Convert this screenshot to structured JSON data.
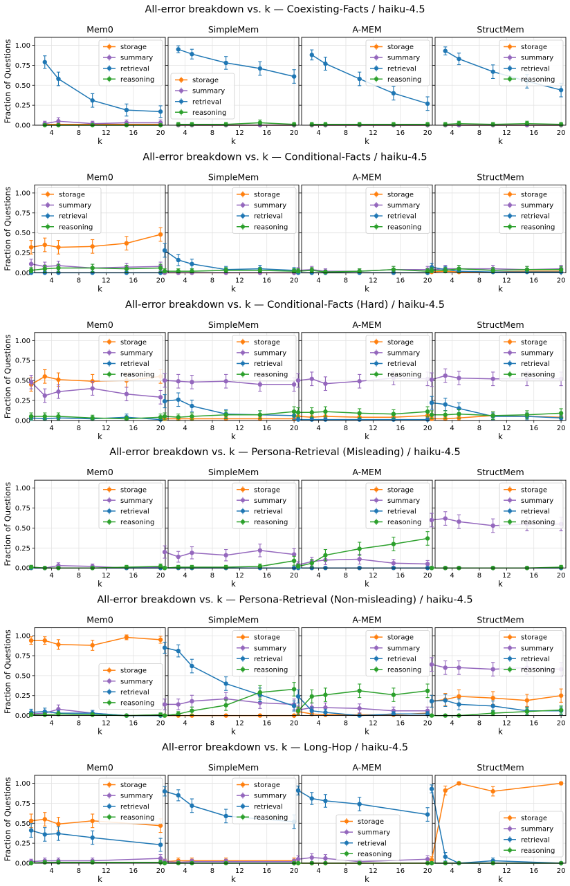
{
  "figure": {
    "ylabel": "Fraction of Questions",
    "xlabel": "k",
    "systems": [
      "Mem0",
      "SimpleMem",
      "A-MEM",
      "StructMem"
    ],
    "series_names": [
      "storage",
      "summary",
      "retrieval",
      "reasoning"
    ],
    "colors": {
      "storage": "#ff7f0e",
      "summary": "#9467bd",
      "retrieval": "#1f77b4",
      "reasoning": "#2ca02c"
    },
    "x_ticks": [
      4,
      8,
      12,
      16,
      20
    ],
    "y_ticks": [
      "0.00",
      "0.25",
      "0.50",
      "0.75",
      "1.00"
    ]
  },
  "chart_data": [
    {
      "type": "line",
      "title": "All-error breakdown vs. k — Coexisting-Facts / haiku-4.5",
      "x": [
        3,
        5,
        10,
        15,
        20
      ],
      "panels": [
        {
          "system": "Mem0",
          "legend": "top-right",
          "series": {
            "storage": [
              0.01,
              0.01,
              0.01,
              0.01,
              0.01
            ],
            "summary": [
              0.02,
              0.05,
              0.02,
              0.03,
              0.03
            ],
            "retrieval": [
              0.79,
              0.58,
              0.31,
              0.19,
              0.17
            ],
            "reasoning": [
              0.0,
              0.0,
              0.0,
              0.0,
              0.0
            ]
          }
        },
        {
          "system": "SimpleMem",
          "legend": "mid-left",
          "series": {
            "storage": [
              0.0,
              0.0,
              0.0,
              0.0,
              0.0
            ],
            "summary": [
              0.0,
              0.0,
              0.0,
              0.0,
              0.0
            ],
            "retrieval": [
              0.95,
              0.89,
              0.78,
              0.71,
              0.61
            ],
            "reasoning": [
              0.01,
              0.01,
              0.01,
              0.03,
              0.01
            ]
          }
        },
        {
          "system": "A-MEM",
          "legend": "top-right",
          "series": {
            "storage": [
              0.0,
              0.0,
              0.0,
              0.0,
              0.0
            ],
            "summary": [
              0.0,
              0.0,
              0.0,
              0.0,
              0.0
            ],
            "retrieval": [
              0.88,
              0.77,
              0.58,
              0.4,
              0.27
            ],
            "reasoning": [
              0.01,
              0.01,
              0.01,
              0.01,
              0.01
            ]
          }
        },
        {
          "system": "StructMem",
          "legend": "top-right",
          "series": {
            "storage": [
              0.0,
              0.0,
              0.0,
              0.0,
              0.0
            ],
            "summary": [
              0.0,
              0.0,
              0.0,
              0.0,
              0.0
            ],
            "retrieval": [
              0.93,
              0.83,
              0.67,
              0.55,
              0.44
            ],
            "reasoning": [
              0.01,
              0.02,
              0.01,
              0.02,
              0.01
            ]
          }
        }
      ]
    },
    {
      "type": "line",
      "title": "All-error breakdown vs. k — Conditional-Facts / haiku-4.5",
      "x": [
        1,
        3,
        5,
        10,
        15,
        20
      ],
      "panels": [
        {
          "system": "Mem0",
          "legend": "top-left",
          "series": {
            "storage": [
              0.32,
              0.35,
              0.32,
              0.33,
              0.37,
              0.48
            ],
            "summary": [
              0.11,
              0.08,
              0.09,
              0.06,
              0.07,
              0.08
            ],
            "retrieval": [
              0.0,
              0.0,
              0.0,
              0.0,
              0.0,
              0.0
            ],
            "reasoning": [
              0.03,
              0.05,
              0.06,
              0.06,
              0.05,
              0.06
            ]
          }
        },
        {
          "system": "SimpleMem",
          "legend": "top-right",
          "series": {
            "storage": [
              0.0,
              0.0,
              0.0,
              0.0,
              0.0,
              0.0
            ],
            "summary": [
              0.0,
              0.0,
              0.0,
              0.0,
              0.0,
              0.0
            ],
            "retrieval": [
              0.28,
              0.16,
              0.11,
              0.04,
              0.05,
              0.03
            ],
            "reasoning": [
              0.02,
              0.02,
              0.02,
              0.03,
              0.03,
              0.02
            ]
          }
        },
        {
          "system": "A-MEM",
          "legend": "top-right",
          "series": {
            "storage": [
              0.0,
              0.0,
              0.0,
              0.0,
              0.0,
              0.0
            ],
            "summary": [
              0.03,
              0.04,
              0.02,
              0.02,
              0.04,
              0.04
            ],
            "retrieval": [
              0.0,
              0.0,
              0.0,
              0.0,
              0.0,
              0.0
            ],
            "reasoning": [
              0.02,
              0.03,
              0.01,
              0.02,
              0.04,
              0.02
            ]
          }
        },
        {
          "system": "StructMem",
          "legend": "top-right",
          "series": {
            "storage": [
              0.01,
              0.02,
              0.01,
              0.01,
              0.02,
              0.02
            ],
            "summary": [
              0.04,
              0.05,
              0.05,
              0.05,
              0.04,
              0.05
            ],
            "retrieval": [
              0.07,
              0.04,
              0.02,
              0.01,
              0.01,
              0.01
            ],
            "reasoning": [
              0.03,
              0.03,
              0.05,
              0.03,
              0.04,
              0.04
            ]
          }
        }
      ]
    },
    {
      "type": "line",
      "title": "All-error breakdown vs. k — Conditional-Facts (Hard) / haiku-4.5",
      "x": [
        1,
        3,
        5,
        10,
        15,
        20
      ],
      "panels": [
        {
          "system": "Mem0",
          "legend": "top-right",
          "series": {
            "storage": [
              0.45,
              0.55,
              0.51,
              0.49,
              0.5,
              0.55
            ],
            "summary": [
              0.48,
              0.31,
              0.36,
              0.4,
              0.33,
              0.29
            ],
            "retrieval": [
              0.03,
              0.02,
              0.03,
              0.02,
              0.04,
              0.01
            ],
            "reasoning": [
              0.05,
              0.05,
              0.05,
              0.03,
              0.02,
              0.04
            ]
          }
        },
        {
          "system": "SimpleMem",
          "legend": "top-right",
          "series": {
            "storage": [
              0.02,
              0.02,
              0.02,
              0.02,
              0.02,
              0.02
            ],
            "summary": [
              0.5,
              0.49,
              0.48,
              0.49,
              0.45,
              0.45
            ],
            "retrieval": [
              0.24,
              0.26,
              0.18,
              0.08,
              0.07,
              0.06
            ],
            "reasoning": [
              0.05,
              0.04,
              0.05,
              0.07,
              0.07,
              0.11
            ]
          }
        },
        {
          "system": "A-MEM",
          "legend": "top-right",
          "series": {
            "storage": [
              0.05,
              0.04,
              0.05,
              0.04,
              0.04,
              0.06
            ],
            "summary": [
              0.5,
              0.52,
              0.46,
              0.49,
              0.53,
              0.52
            ],
            "retrieval": [
              0.01,
              0.01,
              0.01,
              0.01,
              0.01,
              0.01
            ],
            "reasoning": [
              0.1,
              0.1,
              0.11,
              0.09,
              0.08,
              0.11
            ]
          }
        },
        {
          "system": "StructMem",
          "legend": "top-right",
          "series": {
            "storage": [
              0.02,
              0.02,
              0.03,
              0.06,
              0.05,
              0.04
            ],
            "summary": [
              0.51,
              0.56,
              0.53,
              0.52,
              0.52,
              0.52
            ],
            "retrieval": [
              0.22,
              0.2,
              0.15,
              0.05,
              0.05,
              0.03
            ],
            "reasoning": [
              0.07,
              0.07,
              0.08,
              0.06,
              0.07,
              0.09
            ]
          }
        }
      ]
    },
    {
      "type": "line",
      "title": "All-error breakdown vs. k — Persona-Retrieval (Misleading) / haiku-4.5",
      "x": [
        1,
        3,
        5,
        10,
        15,
        20
      ],
      "panels": [
        {
          "system": "Mem0",
          "legend": "top-right",
          "series": {
            "storage": [
              0.0,
              0.0,
              0.0,
              0.0,
              0.0,
              0.0
            ],
            "summary": [
              0.01,
              0.0,
              0.03,
              0.02,
              0.0,
              0.01
            ],
            "retrieval": [
              0.0,
              0.0,
              0.0,
              0.0,
              0.0,
              0.0
            ],
            "reasoning": [
              0.01,
              0.0,
              0.0,
              0.0,
              0.01,
              0.02
            ]
          }
        },
        {
          "system": "SimpleMem",
          "legend": "top-right",
          "series": {
            "storage": [
              0.0,
              0.0,
              0.0,
              0.0,
              0.0,
              0.0
            ],
            "summary": [
              0.2,
              0.14,
              0.19,
              0.16,
              0.22,
              0.17
            ],
            "retrieval": [
              0.0,
              0.0,
              0.0,
              0.0,
              0.0,
              0.0
            ],
            "reasoning": [
              0.0,
              0.01,
              0.01,
              0.01,
              0.02,
              0.09
            ]
          }
        },
        {
          "system": "A-MEM",
          "legend": "top-right",
          "series": {
            "storage": [
              0.0,
              0.0,
              0.0,
              0.0,
              0.0,
              0.0
            ],
            "summary": [
              0.04,
              0.08,
              0.1,
              0.11,
              0.06,
              0.05
            ],
            "retrieval": [
              0.0,
              0.0,
              0.0,
              0.0,
              0.0,
              0.0
            ],
            "reasoning": [
              0.02,
              0.06,
              0.16,
              0.24,
              0.3,
              0.37
            ]
          }
        },
        {
          "system": "StructMem",
          "legend": "top-right",
          "series": {
            "storage": [
              0.0,
              0.0,
              0.0,
              0.0,
              0.0,
              0.0
            ],
            "summary": [
              0.6,
              0.62,
              0.58,
              0.53,
              0.55,
              0.55
            ],
            "retrieval": [
              0.0,
              0.0,
              0.0,
              0.0,
              0.0,
              0.0
            ],
            "reasoning": [
              0.0,
              0.0,
              0.0,
              0.0,
              0.0,
              0.01
            ]
          }
        }
      ]
    },
    {
      "type": "line",
      "title": "All-error breakdown vs. k — Persona-Retrieval (Non-misleading) / haiku-4.5",
      "x": [
        1,
        3,
        5,
        10,
        15,
        20
      ],
      "panels": [
        {
          "system": "Mem0",
          "legend": "mid-right",
          "series": {
            "storage": [
              0.94,
              0.94,
              0.89,
              0.88,
              0.98,
              0.95
            ],
            "summary": [
              0.02,
              0.03,
              0.08,
              0.03,
              0.0,
              0.01
            ],
            "retrieval": [
              0.04,
              0.05,
              0.03,
              0.03,
              0.0,
              0.0
            ],
            "reasoning": [
              0.01,
              0.01,
              0.02,
              0.01,
              0.0,
              0.01
            ]
          }
        },
        {
          "system": "SimpleMem",
          "legend": "top-right",
          "series": {
            "storage": [
              0.0,
              0.0,
              0.0,
              0.0,
              0.0,
              0.0
            ],
            "summary": [
              0.14,
              0.14,
              0.18,
              0.21,
              0.16,
              0.14
            ],
            "retrieval": [
              0.85,
              0.81,
              0.62,
              0.4,
              0.26,
              0.12
            ],
            "reasoning": [
              0.0,
              0.02,
              0.06,
              0.13,
              0.29,
              0.33
            ]
          }
        },
        {
          "system": "A-MEM",
          "legend": "top-right",
          "series": {
            "storage": [
              0.05,
              0.02,
              0.01,
              0.01,
              0.01,
              0.03
            ],
            "summary": [
              0.07,
              0.1,
              0.1,
              0.09,
              0.06,
              0.06
            ],
            "retrieval": [
              0.24,
              0.06,
              0.04,
              0.0,
              0.02,
              0.02
            ],
            "reasoning": [
              0.06,
              0.24,
              0.26,
              0.31,
              0.26,
              0.31
            ]
          }
        },
        {
          "system": "StructMem",
          "legend": "top-right",
          "series": {
            "storage": [
              0.18,
              0.2,
              0.24,
              0.22,
              0.19,
              0.25
            ],
            "summary": [
              0.64,
              0.6,
              0.6,
              0.58,
              0.6,
              0.58
            ],
            "retrieval": [
              0.18,
              0.19,
              0.14,
              0.12,
              0.06,
              0.06
            ],
            "reasoning": [
              0.0,
              0.0,
              0.0,
              0.03,
              0.05,
              0.07
            ]
          }
        }
      ]
    },
    {
      "type": "line",
      "title": "All-error breakdown vs. k — Long-Hop / haiku-4.5",
      "x": [
        1,
        3,
        5,
        10,
        20
      ],
      "panels": [
        {
          "system": "Mem0",
          "legend": "top-right",
          "series": {
            "storage": [
              0.53,
              0.55,
              0.49,
              0.53,
              0.47
            ],
            "summary": [
              0.02,
              0.03,
              0.03,
              0.03,
              0.06
            ],
            "retrieval": [
              0.41,
              0.36,
              0.37,
              0.32,
              0.23
            ],
            "reasoning": [
              0.0,
              0.01,
              0.01,
              0.01,
              0.01
            ]
          }
        },
        {
          "system": "SimpleMem",
          "legend": "top-right",
          "series": {
            "storage": [
              0.02,
              0.03,
              0.03,
              0.03,
              0.03
            ],
            "summary": [
              0.02,
              0.01,
              0.02,
              0.02,
              0.02
            ],
            "retrieval": [
              0.9,
              0.85,
              0.72,
              0.59,
              0.52
            ],
            "reasoning": [
              0.0,
              0.0,
              0.0,
              0.0,
              0.0
            ]
          }
        },
        {
          "system": "A-MEM",
          "legend": "bottom-left",
          "series": {
            "storage": [
              0.0,
              0.0,
              0.0,
              0.0,
              0.0
            ],
            "summary": [
              0.05,
              0.07,
              0.06,
              0.02,
              0.05
            ],
            "retrieval": [
              0.91,
              0.81,
              0.78,
              0.74,
              0.61
            ],
            "reasoning": [
              0.0,
              0.0,
              0.0,
              0.0,
              0.0
            ]
          }
        },
        {
          "system": "StructMem",
          "legend": "mid-right",
          "series": {
            "storage": [
              0.04,
              0.91,
              1.0,
              0.9,
              1.0
            ],
            "summary": [
              0.0,
              0.0,
              0.0,
              0.0,
              0.0
            ],
            "retrieval": [
              0.93,
              0.08,
              0.0,
              0.03,
              0.0
            ],
            "reasoning": [
              0.0,
              0.0,
              0.0,
              0.0,
              0.0
            ]
          }
        }
      ]
    }
  ]
}
